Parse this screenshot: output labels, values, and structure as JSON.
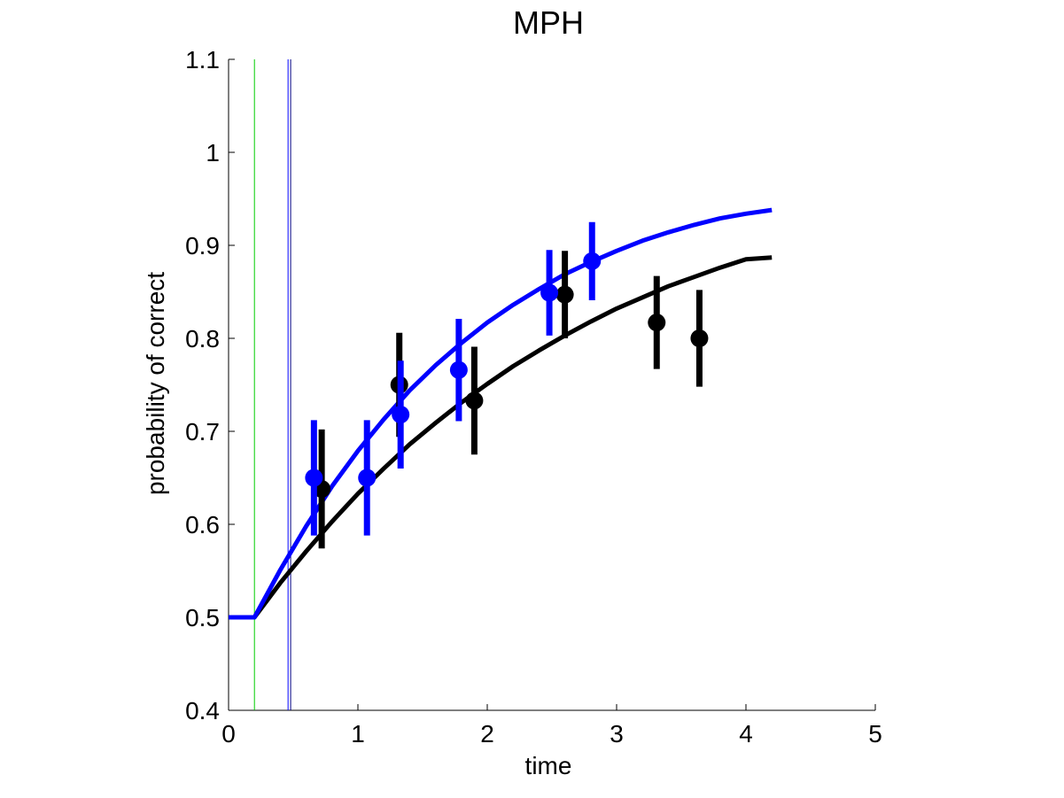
{
  "chart_data": {
    "type": "line",
    "title": "MPH",
    "xlabel": "time",
    "ylabel": "probability of correct",
    "xlim": [
      0,
      5
    ],
    "ylim": [
      0.4,
      1.1
    ],
    "xticks": [
      "0",
      "1",
      "2",
      "3",
      "4",
      "5"
    ],
    "yticks": [
      "0.4",
      "0.5",
      "0.6",
      "0.7",
      "0.8",
      "0.9",
      "1",
      "1.1"
    ],
    "grid": false,
    "vertical_lines": [
      {
        "x": 0.2,
        "color": "#00cc00"
      },
      {
        "x": 0.46,
        "color": "#0000ff"
      },
      {
        "x": 0.48,
        "color": "#000080"
      }
    ],
    "fit_curves": [
      {
        "color": "#000000",
        "x": [
          0.0,
          0.2,
          0.4,
          0.6,
          0.8,
          1.0,
          1.2,
          1.4,
          1.6,
          1.8,
          2.0,
          2.2,
          2.4,
          2.6,
          2.8,
          3.0,
          3.2,
          3.4,
          3.6,
          3.8,
          4.0,
          4.2
        ],
        "y": [
          0.5,
          0.5,
          0.537,
          0.571,
          0.603,
          0.633,
          0.66,
          0.686,
          0.709,
          0.731,
          0.751,
          0.77,
          0.787,
          0.803,
          0.818,
          0.832,
          0.844,
          0.856,
          0.866,
          0.876,
          0.885,
          0.887
        ]
      },
      {
        "color": "#0000ff",
        "x": [
          0.0,
          0.2,
          0.4,
          0.6,
          0.8,
          1.0,
          1.2,
          1.4,
          1.6,
          1.8,
          2.0,
          2.2,
          2.4,
          2.6,
          2.8,
          3.0,
          3.2,
          3.4,
          3.6,
          3.8,
          4.0,
          4.2
        ],
        "y": [
          0.5,
          0.5,
          0.551,
          0.598,
          0.641,
          0.679,
          0.713,
          0.744,
          0.771,
          0.795,
          0.817,
          0.836,
          0.853,
          0.869,
          0.882,
          0.894,
          0.905,
          0.914,
          0.922,
          0.929,
          0.934,
          0.938
        ]
      }
    ],
    "series": [
      {
        "color": "#000000",
        "x": [
          0.72,
          1.32,
          1.9,
          2.6,
          3.31,
          3.64
        ],
        "y": [
          0.638,
          0.75,
          0.733,
          0.847,
          0.817,
          0.8
        ],
        "err": [
          0.064,
          0.056,
          0.058,
          0.047,
          0.05,
          0.052
        ]
      },
      {
        "color": "#0000ff",
        "x": [
          0.66,
          1.07,
          1.33,
          1.78,
          2.48,
          2.81
        ],
        "y": [
          0.65,
          0.65,
          0.718,
          0.766,
          0.849,
          0.883
        ],
        "err": [
          0.062,
          0.062,
          0.058,
          0.055,
          0.046,
          0.042
        ]
      }
    ]
  }
}
